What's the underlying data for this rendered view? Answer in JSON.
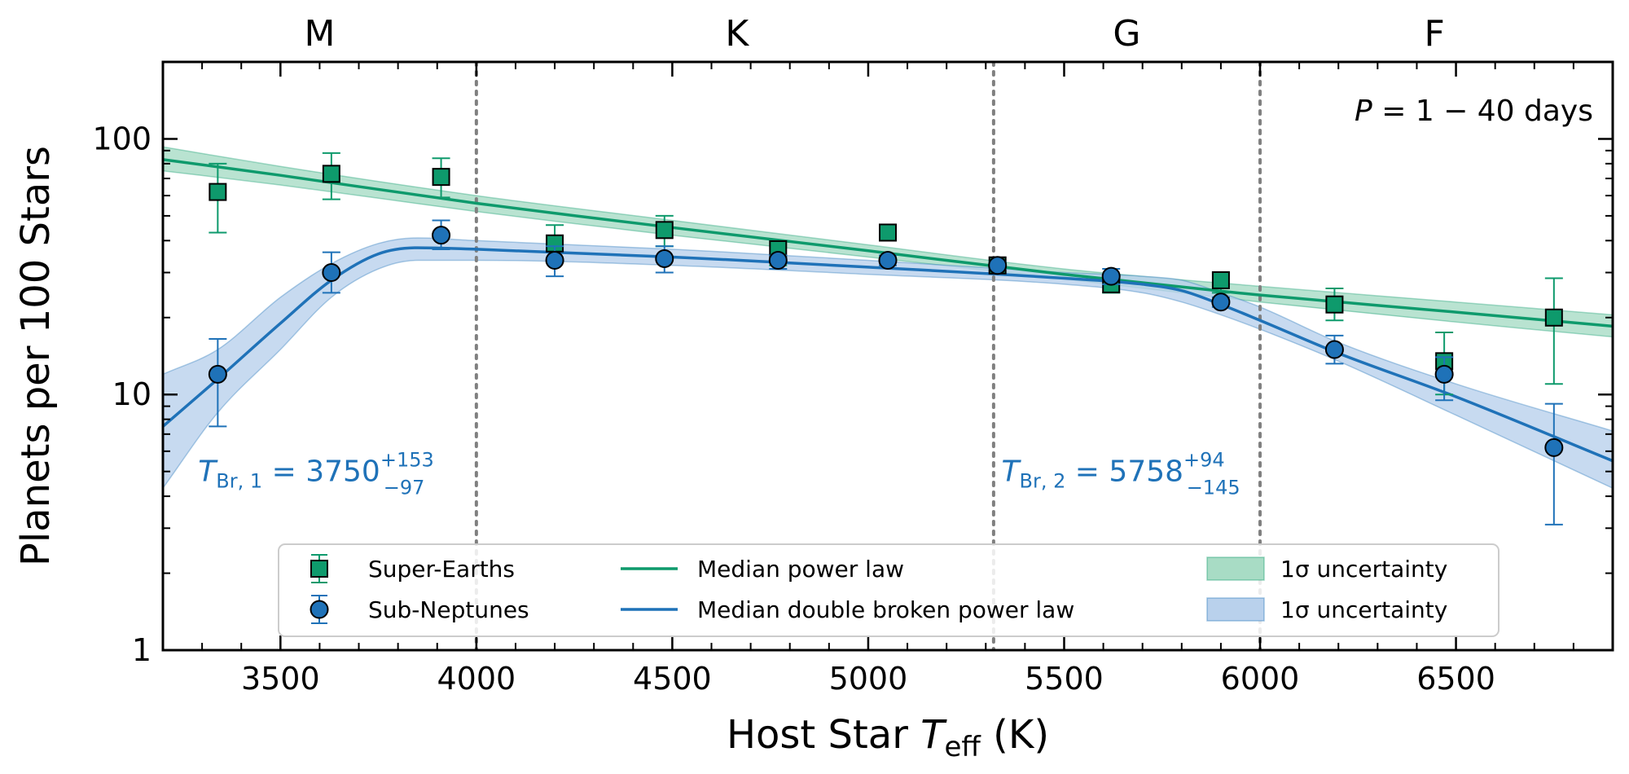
{
  "colors": {
    "super_earth": "#0e9a6c",
    "sub_neptune": "#1f72b8",
    "super_band": "#a8dcc5",
    "sub_band": "#b9d1ec",
    "divider": "#808080"
  },
  "chart_data": {
    "type": "scatter",
    "xlabel_prefix": "Host Star ",
    "xlabel_var": "T",
    "xlabel_sub": "eff",
    "xlabel_suffix": " (K)",
    "ylabel": "Planets per 100 Stars",
    "xlim": [
      3200,
      6900
    ],
    "ylim": [
      1,
      200
    ],
    "yscale": "log",
    "x_ticks": [
      3500,
      4000,
      4500,
      5000,
      5500,
      6000,
      6500
    ],
    "x_tick_labels": [
      "3500",
      "4000",
      "4500",
      "5000",
      "5500",
      "6000",
      "6500"
    ],
    "y_ticks": [
      1,
      10,
      100
    ],
    "y_tick_labels": [
      "1",
      "10",
      "100"
    ],
    "spectral_classes": [
      {
        "label": "M",
        "x": 3600
      },
      {
        "label": "K",
        "x": 4665
      },
      {
        "label": "G",
        "x": 5660
      },
      {
        "label": "F",
        "x": 6445
      }
    ],
    "class_boundaries": [
      4000,
      5320,
      6000
    ],
    "period_annotation": {
      "var": "P",
      "text": " = 1 − 40 days"
    },
    "breaks": [
      {
        "main": "T",
        "sub": "Br, 1",
        "value": " = 3750",
        "sup": "+153",
        "low": "−97",
        "x": 3290,
        "y": 5.0
      },
      {
        "main": "T",
        "sub": "Br, 2",
        "value": " = 5758",
        "sup": "+94",
        "low": "−145",
        "x": 5340,
        "y": 5.0
      }
    ],
    "series": [
      {
        "name": "Super-Earths",
        "marker": "square",
        "x": [
          3340,
          3630,
          3910,
          4200,
          4480,
          4770,
          5050,
          5330,
          5620,
          5900,
          6190,
          6470,
          6750
        ],
        "y": [
          62,
          73,
          71,
          39,
          44,
          37,
          43,
          32,
          27,
          28,
          22.5,
          13.5,
          20
        ],
        "y_err_low": [
          43,
          58,
          59,
          33,
          38,
          32,
          41,
          31,
          25,
          25,
          19.5,
          10,
          11
        ],
        "y_err_high": [
          80,
          88,
          84,
          46,
          50,
          40,
          45,
          33,
          29,
          30,
          26,
          17.5,
          28.5
        ]
      },
      {
        "name": "Sub-Neptunes",
        "marker": "circle",
        "x": [
          3340,
          3630,
          3910,
          4200,
          4480,
          4770,
          5050,
          5330,
          5620,
          5900,
          6190,
          6470,
          6750
        ],
        "y": [
          12,
          30,
          42,
          33.5,
          34,
          33.5,
          33.5,
          32,
          29,
          23,
          15,
          12,
          6.2
        ],
        "y_err_low": [
          7.5,
          25,
          37,
          29,
          30,
          31,
          32,
          31,
          27,
          22,
          13.2,
          9.5,
          3.1
        ],
        "y_err_high": [
          16.5,
          36,
          48,
          38,
          38,
          35,
          35,
          33,
          31,
          24,
          17,
          14,
          9.2
        ]
      }
    ],
    "fits": [
      {
        "name": "Median power law",
        "x": [
          3200,
          3500,
          4000,
          4500,
          5000,
          5500,
          6000,
          6500,
          6900
        ],
        "y": [
          83,
          72,
          56,
          45,
          36.5,
          29.5,
          24.5,
          21,
          18.5
        ],
        "band_low": [
          75,
          66,
          52,
          42,
          34.5,
          28.3,
          23,
          19.2,
          16.8
        ],
        "band_high": [
          93,
          78,
          60,
          48,
          38.5,
          31,
          26.5,
          23,
          20.5
        ]
      },
      {
        "name": "Median double broken power law",
        "x": [
          3200,
          3340,
          3500,
          3630,
          3750,
          3850,
          4000,
          4500,
          5000,
          5500,
          5700,
          5800,
          5900,
          6000,
          6200,
          6500,
          6900
        ],
        "y": [
          7.5,
          11.5,
          19,
          28,
          35.5,
          37.5,
          37,
          34.5,
          31.5,
          28.5,
          27,
          25.5,
          22.5,
          19.5,
          14.5,
          9.8,
          5.5
        ],
        "band_low": [
          4.3,
          8.5,
          15,
          24,
          31,
          33.5,
          33.5,
          32,
          29.5,
          27,
          25,
          23,
          20.5,
          18,
          13.5,
          8.3,
          4.3
        ],
        "band_high": [
          12,
          15,
          24,
          32.5,
          39,
          41,
          40,
          37,
          33.5,
          30,
          29,
          28,
          25,
          22,
          16,
          11,
          7.2
        ]
      }
    ],
    "legend": {
      "placement": "bottom-center",
      "entries": [
        "Super-Earths",
        "Sub-Neptunes",
        "Median power law",
        "Median double broken power law",
        "1σ uncertainty",
        "1σ uncertainty"
      ]
    },
    "grid": false
  }
}
